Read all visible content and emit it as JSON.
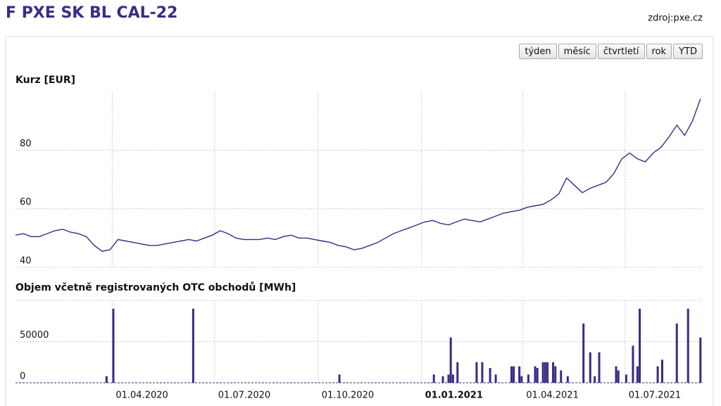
{
  "header": {
    "title": "F PXE SK BL CAL-22",
    "source": "zdroj:pxe.cz"
  },
  "buttons": [
    "týden",
    "měsíc",
    "čtvrtletí",
    "rok",
    "YTD"
  ],
  "chart_data": [
    {
      "type": "line",
      "title": "Kurz [EUR]",
      "color": "#3b2a86",
      "grid": true,
      "ylim": [
        40,
        100
      ],
      "yticks": [
        40,
        60,
        80
      ],
      "xlim": [
        "2020-01-06",
        "2021-09-08"
      ],
      "x": [
        "2020-01-06",
        "2020-01-13",
        "2020-01-20",
        "2020-01-27",
        "2020-02-03",
        "2020-02-10",
        "2020-02-17",
        "2020-02-24",
        "2020-03-02",
        "2020-03-09",
        "2020-03-16",
        "2020-03-23",
        "2020-03-30",
        "2020-04-06",
        "2020-04-13",
        "2020-04-20",
        "2020-04-27",
        "2020-05-04",
        "2020-05-11",
        "2020-05-18",
        "2020-05-25",
        "2020-06-01",
        "2020-06-08",
        "2020-06-15",
        "2020-06-22",
        "2020-06-29",
        "2020-07-06",
        "2020-07-13",
        "2020-07-20",
        "2020-07-27",
        "2020-08-03",
        "2020-08-10",
        "2020-08-17",
        "2020-08-24",
        "2020-08-31",
        "2020-09-07",
        "2020-09-14",
        "2020-09-21",
        "2020-09-28",
        "2020-10-05",
        "2020-10-12",
        "2020-10-19",
        "2020-10-26",
        "2020-11-02",
        "2020-11-09",
        "2020-11-16",
        "2020-11-23",
        "2020-11-30",
        "2020-12-07",
        "2020-12-14",
        "2020-12-21",
        "2020-12-28",
        "2021-01-04",
        "2021-01-11",
        "2021-01-18",
        "2021-01-25",
        "2021-02-01",
        "2021-02-08",
        "2021-02-15",
        "2021-02-22",
        "2021-03-01",
        "2021-03-08",
        "2021-03-15",
        "2021-03-22",
        "2021-03-29",
        "2021-04-05",
        "2021-04-12",
        "2021-04-19",
        "2021-04-26",
        "2021-05-03",
        "2021-05-10",
        "2021-05-17",
        "2021-05-24",
        "2021-05-31",
        "2021-06-07",
        "2021-06-14",
        "2021-06-21",
        "2021-06-28",
        "2021-07-05",
        "2021-07-12",
        "2021-07-19",
        "2021-07-26",
        "2021-08-02",
        "2021-08-09",
        "2021-08-16",
        "2021-08-23",
        "2021-08-30",
        "2021-09-06"
      ],
      "values": [
        51,
        51.5,
        50.5,
        50.5,
        51.5,
        52.5,
        53,
        52,
        51.5,
        50.5,
        47.5,
        45.5,
        46,
        49.5,
        49,
        48.5,
        48,
        47.5,
        47.5,
        48,
        48.5,
        49,
        49.5,
        49,
        50,
        51,
        52.5,
        51.5,
        50,
        49.5,
        49.5,
        49.5,
        50,
        49.5,
        50.5,
        51,
        50,
        50,
        49.5,
        49,
        48.5,
        47.5,
        47,
        46,
        46.5,
        47.5,
        48.5,
        50,
        51.5,
        52.5,
        53.5,
        54.5,
        55.5,
        56,
        55,
        54.5,
        55.5,
        56.5,
        56,
        55.5,
        56.5,
        57.5,
        58.5,
        59,
        59.5,
        60.5,
        61,
        61.5,
        63,
        65,
        70.5,
        68,
        65.5,
        67,
        68,
        69,
        72,
        77,
        79,
        77,
        76,
        79,
        81,
        84.5,
        88.5,
        85,
        90,
        97.5
      ]
    },
    {
      "type": "bar",
      "title": "Objem včetně registrovaných OTC obchodů [MWh]",
      "color": "#3b2a86",
      "grid": true,
      "ylim": [
        0,
        100000
      ],
      "yticks": [
        0,
        50000
      ],
      "xlim": [
        "2020-01-06",
        "2021-09-08"
      ],
      "xticks": [
        {
          "value": "2020-04-01",
          "label": "01.04.2020"
        },
        {
          "value": "2020-07-01",
          "label": "01.07.2020"
        },
        {
          "value": "2020-10-01",
          "label": "01.10.2020"
        },
        {
          "value": "2021-01-01",
          "label": "01.01.2021",
          "bold": true
        },
        {
          "value": "2021-04-01",
          "label": "01.04.2021"
        },
        {
          "value": "2021-07-01",
          "label": "01.07.2021"
        }
      ],
      "x": [
        "2020-03-27",
        "2020-04-02",
        "2020-06-12",
        "2020-10-20",
        "2021-01-12",
        "2021-01-20",
        "2021-01-25",
        "2021-01-27",
        "2021-01-29",
        "2021-02-02",
        "2021-02-19",
        "2021-02-24",
        "2021-03-03",
        "2021-03-08",
        "2021-03-22",
        "2021-03-24",
        "2021-03-29",
        "2021-03-31",
        "2021-04-06",
        "2021-04-12",
        "2021-04-14",
        "2021-04-19",
        "2021-04-21",
        "2021-04-23",
        "2021-04-28",
        "2021-04-30",
        "2021-05-05",
        "2021-05-11",
        "2021-05-25",
        "2021-05-31",
        "2021-06-04",
        "2021-06-08",
        "2021-06-23",
        "2021-06-25",
        "2021-07-02",
        "2021-07-08",
        "2021-07-12",
        "2021-07-14",
        "2021-07-30",
        "2021-08-03",
        "2021-08-16",
        "2021-08-26",
        "2021-09-06"
      ],
      "values": [
        8000,
        90000,
        90000,
        10000,
        10000,
        8000,
        10000,
        55000,
        10000,
        25000,
        25000,
        25000,
        18000,
        10000,
        20000,
        20000,
        20000,
        8000,
        10000,
        20000,
        18000,
        25000,
        25000,
        25000,
        25000,
        20000,
        15000,
        8000,
        72000,
        37000,
        8000,
        37000,
        20000,
        15000,
        10000,
        45000,
        20000,
        90000,
        20000,
        28000,
        72000,
        90000,
        55000
      ]
    }
  ]
}
